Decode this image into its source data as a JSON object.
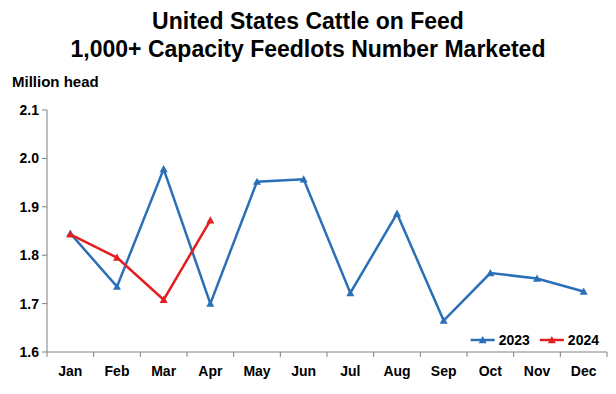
{
  "chart_data": {
    "type": "line",
    "title": [
      "United States Cattle on Feed",
      "1,000+ Capacity Feedlots Number Marketed"
    ],
    "y_label": "Million head",
    "categories": [
      "Jan",
      "Feb",
      "Mar",
      "Apr",
      "May",
      "Jun",
      "Jul",
      "Aug",
      "Sep",
      "Oct",
      "Nov",
      "Dec"
    ],
    "series": [
      {
        "name": "2023",
        "color": "#2a6fb8",
        "marker": "triangle",
        "line_style": "solid",
        "values": [
          1.845,
          1.735,
          1.978,
          1.7,
          1.952,
          1.957,
          1.722,
          1.886,
          1.665,
          1.763,
          1.752,
          1.725
        ]
      },
      {
        "name": "2024",
        "color": "#e41e1e",
        "marker": "triangle",
        "line_style": "solid",
        "values": [
          1.843,
          1.795,
          1.708,
          1.872,
          null,
          null,
          null,
          null,
          null,
          null,
          null,
          null
        ]
      }
    ],
    "ylim": [
      1.6,
      2.1
    ],
    "yticks": [
      1.6,
      1.7,
      1.8,
      1.9,
      {
        "value": 2,
        "label": "2.0"
      },
      2.1
    ],
    "grid": false,
    "legend": "bottom-right"
  }
}
